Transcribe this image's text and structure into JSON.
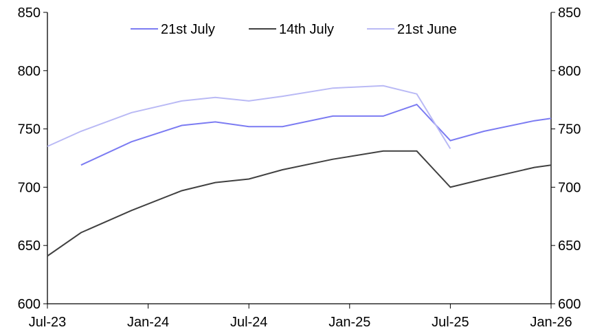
{
  "chart_data": {
    "type": "line",
    "title": "",
    "xlabel": "",
    "ylabel": "",
    "ylim": [
      600,
      850
    ],
    "yticks": [
      600,
      650,
      700,
      750,
      800,
      850
    ],
    "xlim": [
      "2023-07",
      "2026-01"
    ],
    "xticks": [
      {
        "date": "2023-07",
        "label": "Jul-23"
      },
      {
        "date": "2024-01",
        "label": "Jan-24"
      },
      {
        "date": "2024-07",
        "label": "Jul-24"
      },
      {
        "date": "2025-01",
        "label": "Jan-25"
      },
      {
        "date": "2025-07",
        "label": "Jul-25"
      },
      {
        "date": "2026-01",
        "label": "Jan-26"
      }
    ],
    "grid": false,
    "legend_position": "top-center",
    "series": [
      {
        "name": "21st July",
        "color": "#7b7bf2",
        "points": [
          [
            "2023-09",
            719
          ],
          [
            "2023-12",
            739
          ],
          [
            "2024-03",
            753
          ],
          [
            "2024-05",
            756
          ],
          [
            "2024-07",
            752
          ],
          [
            "2024-09",
            752
          ],
          [
            "2024-12",
            761
          ],
          [
            "2025-03",
            761
          ],
          [
            "2025-05",
            771
          ],
          [
            "2025-07",
            740
          ],
          [
            "2025-09",
            748
          ],
          [
            "2025-12",
            757
          ],
          [
            "2026-01",
            759
          ]
        ]
      },
      {
        "name": "14th July",
        "color": "#404040",
        "points": [
          [
            "2023-07",
            641
          ],
          [
            "2023-09",
            661
          ],
          [
            "2023-12",
            680
          ],
          [
            "2024-03",
            697
          ],
          [
            "2024-05",
            704
          ],
          [
            "2024-07",
            707
          ],
          [
            "2024-09",
            715
          ],
          [
            "2024-12",
            724
          ],
          [
            "2025-03",
            731
          ],
          [
            "2025-05",
            731
          ],
          [
            "2025-07",
            700
          ],
          [
            "2025-09",
            707
          ],
          [
            "2025-12",
            717
          ],
          [
            "2026-01",
            719
          ]
        ]
      },
      {
        "name": "21st June",
        "color": "#b9b9f5",
        "points": [
          [
            "2023-07",
            735
          ],
          [
            "2023-09",
            748
          ],
          [
            "2023-12",
            764
          ],
          [
            "2024-03",
            774
          ],
          [
            "2024-05",
            777
          ],
          [
            "2024-07",
            774
          ],
          [
            "2024-09",
            778
          ],
          [
            "2024-12",
            785
          ],
          [
            "2025-03",
            787
          ],
          [
            "2025-05",
            780
          ],
          [
            "2025-07",
            733
          ]
        ]
      }
    ]
  }
}
